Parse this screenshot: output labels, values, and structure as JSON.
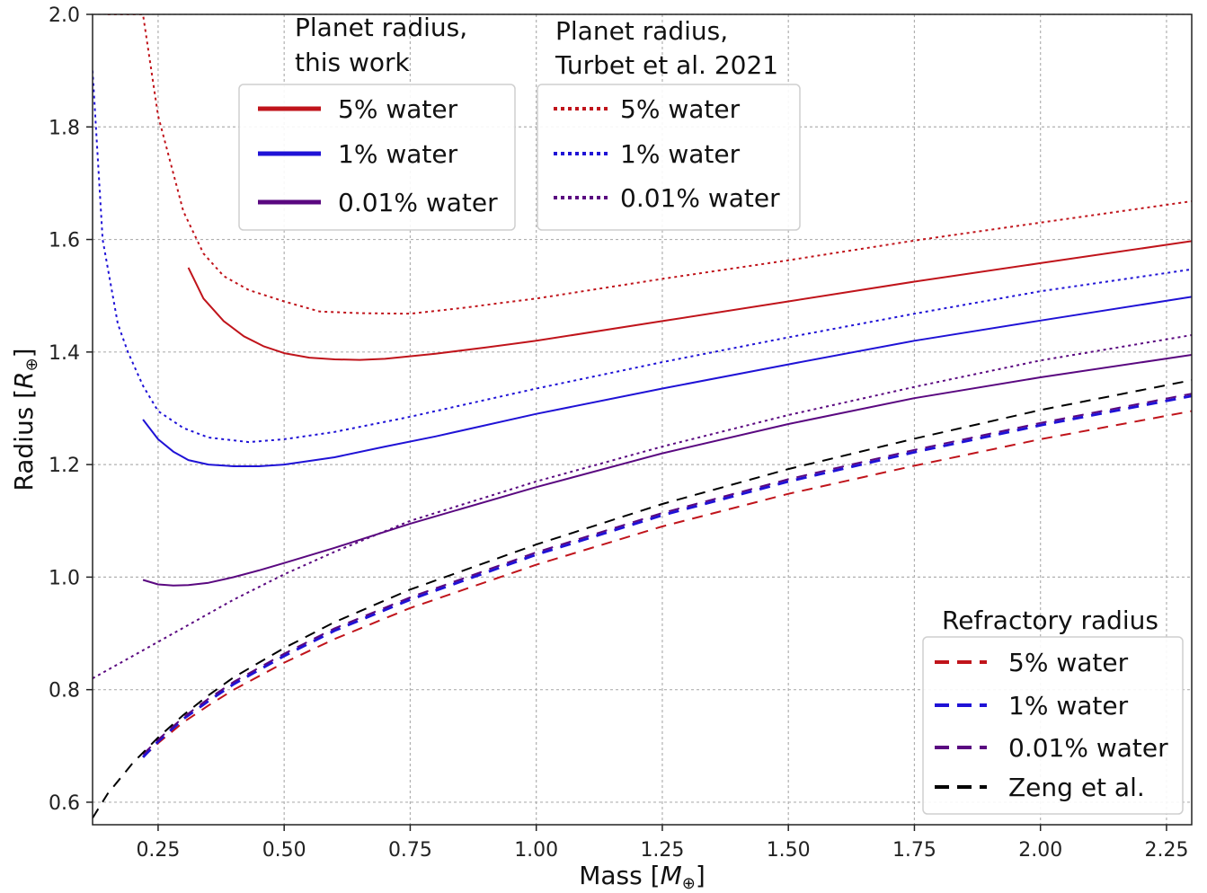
{
  "chart_data": {
    "type": "line",
    "xlabel": "Mass [",
    "xlabel_symbol": "M",
    "xlabel_sub": "⊕",
    "xlabel_close": "]",
    "ylabel": "Radius [",
    "ylabel_symbol": "R",
    "ylabel_sub": "⊕",
    "ylabel_close": "]",
    "xlim": [
      0.12,
      2.3
    ],
    "ylim": [
      0.56,
      2.0
    ],
    "xticks": [
      0.25,
      0.5,
      0.75,
      1.0,
      1.25,
      1.5,
      1.75,
      2.0,
      2.25
    ],
    "xtick_labels": [
      "0.25",
      "0.50",
      "0.75",
      "1.00",
      "1.25",
      "1.50",
      "1.75",
      "2.00",
      "2.25"
    ],
    "yticks": [
      0.6,
      0.8,
      1.0,
      1.2,
      1.4,
      1.6,
      1.8,
      2.0
    ],
    "ytick_labels": [
      "0.6",
      "0.8",
      "1.0",
      "1.2",
      "1.4",
      "1.6",
      "1.8",
      "2.0"
    ],
    "grid": true,
    "colors": {
      "red": "#c0141b",
      "blue": "#1f12d6",
      "purple": "#5a0880",
      "black": "#000000"
    },
    "legends": [
      {
        "title_lines": [
          "Planet radius,",
          "this work"
        ],
        "entries": [
          {
            "label": "5% water",
            "color": "#c0141b",
            "style": "solid"
          },
          {
            "label": "1% water",
            "color": "#1f12d6",
            "style": "solid"
          },
          {
            "label": "0.01% water",
            "color": "#5a0880",
            "style": "solid"
          }
        ]
      },
      {
        "title_lines": [
          "Planet radius,",
          "Turbet et al. 2021"
        ],
        "entries": [
          {
            "label": "5% water",
            "color": "#c0141b",
            "style": "dotted"
          },
          {
            "label": "1% water",
            "color": "#1f12d6",
            "style": "dotted"
          },
          {
            "label": "0.01% water",
            "color": "#5a0880",
            "style": "dotted"
          }
        ]
      },
      {
        "title_lines": [
          "Refractory radius"
        ],
        "entries": [
          {
            "label": "5% water",
            "color": "#c0141b",
            "style": "dashed"
          },
          {
            "label": "1% water",
            "color": "#1f12d6",
            "style": "dashed"
          },
          {
            "label": "0.01% water",
            "color": "#5a0880",
            "style": "dashed"
          },
          {
            "label": "Zeng et al.",
            "color": "#000000",
            "style": "dashed"
          }
        ]
      }
    ],
    "series": [
      {
        "group": "this work",
        "water": "5% water",
        "color": "#c0141b",
        "style": "solid",
        "x": [
          0.31,
          0.34,
          0.38,
          0.42,
          0.46,
          0.5,
          0.55,
          0.6,
          0.65,
          0.7,
          0.8,
          0.9,
          1.0,
          1.25,
          1.5,
          1.75,
          2.0,
          2.3
        ],
        "y": [
          1.55,
          1.495,
          1.455,
          1.428,
          1.41,
          1.398,
          1.39,
          1.387,
          1.386,
          1.388,
          1.397,
          1.408,
          1.42,
          1.455,
          1.49,
          1.525,
          1.558,
          1.597
        ]
      },
      {
        "group": "this work",
        "water": "1% water",
        "color": "#1f12d6",
        "style": "solid",
        "x": [
          0.22,
          0.25,
          0.28,
          0.31,
          0.35,
          0.4,
          0.45,
          0.5,
          0.6,
          0.7,
          0.8,
          1.0,
          1.25,
          1.5,
          1.75,
          2.0,
          2.3
        ],
        "y": [
          1.28,
          1.245,
          1.223,
          1.208,
          1.2,
          1.197,
          1.197,
          1.2,
          1.213,
          1.232,
          1.25,
          1.29,
          1.335,
          1.378,
          1.42,
          1.456,
          1.498
        ]
      },
      {
        "group": "this work",
        "water": "0.01% water",
        "color": "#5a0880",
        "style": "solid",
        "x": [
          0.22,
          0.25,
          0.28,
          0.31,
          0.35,
          0.4,
          0.45,
          0.5,
          0.6,
          0.75,
          1.0,
          1.25,
          1.5,
          1.75,
          2.0,
          2.3
        ],
        "y": [
          0.995,
          0.987,
          0.985,
          0.986,
          0.99,
          1.0,
          1.012,
          1.025,
          1.052,
          1.095,
          1.16,
          1.22,
          1.272,
          1.318,
          1.355,
          1.395
        ]
      },
      {
        "group": "Turbet et al. 2021",
        "water": "5% water",
        "color": "#c0141b",
        "style": "dotted",
        "x": [
          0.15,
          0.19,
          0.22,
          0.25,
          0.3,
          0.34,
          0.38,
          0.43,
          0.5,
          0.57,
          0.65,
          0.75,
          0.85,
          1.0,
          1.25,
          1.5,
          1.75,
          2.0,
          2.3
        ],
        "y": [
          2.0,
          2.0,
          2.0,
          1.82,
          1.65,
          1.575,
          1.535,
          1.51,
          1.49,
          1.472,
          1.469,
          1.468,
          1.478,
          1.495,
          1.53,
          1.563,
          1.598,
          1.63,
          1.668
        ]
      },
      {
        "group": "Turbet et al. 2021",
        "water": "1% water",
        "color": "#1f12d6",
        "style": "dotted",
        "x": [
          0.12,
          0.14,
          0.17,
          0.19,
          0.22,
          0.25,
          0.3,
          0.35,
          0.43,
          0.5,
          0.6,
          0.75,
          1.0,
          1.25,
          1.5,
          1.75,
          2.0,
          2.3
        ],
        "y": [
          1.9,
          1.6,
          1.45,
          1.4,
          1.34,
          1.295,
          1.265,
          1.248,
          1.24,
          1.245,
          1.258,
          1.285,
          1.335,
          1.382,
          1.426,
          1.468,
          1.508,
          1.547
        ]
      },
      {
        "group": "Turbet et al. 2021",
        "water": "0.01% water",
        "color": "#5a0880",
        "style": "dotted",
        "x": [
          0.12,
          0.2,
          0.3,
          0.4,
          0.5,
          0.6,
          0.75,
          1.0,
          1.25,
          1.5,
          1.75,
          2.0,
          2.3
        ],
        "y": [
          0.82,
          0.86,
          0.91,
          0.96,
          1.005,
          1.045,
          1.1,
          1.17,
          1.232,
          1.288,
          1.338,
          1.385,
          1.43
        ]
      },
      {
        "group": "Refractory radius",
        "water": "5% water",
        "color": "#c0141b",
        "style": "dashed",
        "x": [
          0.22,
          0.25,
          0.3,
          0.35,
          0.4,
          0.5,
          0.6,
          0.75,
          1.0,
          1.25,
          1.5,
          1.75,
          2.0,
          2.3
        ],
        "y": [
          0.68,
          0.705,
          0.742,
          0.772,
          0.8,
          0.848,
          0.89,
          0.945,
          1.022,
          1.09,
          1.148,
          1.198,
          1.245,
          1.295
        ]
      },
      {
        "group": "Refractory radius",
        "water": "1% water",
        "color": "#1f12d6",
        "style": "dashed",
        "x": [
          0.22,
          0.25,
          0.3,
          0.35,
          0.4,
          0.5,
          0.6,
          0.75,
          1.0,
          1.25,
          1.5,
          1.75,
          2.0,
          2.3
        ],
        "y": [
          0.68,
          0.708,
          0.748,
          0.78,
          0.81,
          0.86,
          0.905,
          0.96,
          1.04,
          1.11,
          1.17,
          1.222,
          1.27,
          1.322
        ]
      },
      {
        "group": "Refractory radius",
        "water": "0.01% water",
        "color": "#5a0880",
        "style": "dashed",
        "x": [
          0.22,
          0.25,
          0.3,
          0.35,
          0.4,
          0.5,
          0.6,
          0.75,
          1.0,
          1.25,
          1.5,
          1.75,
          2.0,
          2.3
        ],
        "y": [
          0.685,
          0.711,
          0.751,
          0.784,
          0.814,
          0.864,
          0.909,
          0.964,
          1.044,
          1.114,
          1.174,
          1.226,
          1.274,
          1.326
        ]
      },
      {
        "group": "Refractory radius",
        "water": "Zeng et al.",
        "color": "#000000",
        "style": "dashed",
        "x": [
          0.12,
          0.15,
          0.2,
          0.25,
          0.3,
          0.35,
          0.4,
          0.5,
          0.6,
          0.75,
          1.0,
          1.25,
          1.5,
          1.75,
          2.0,
          2.3
        ],
        "y": [
          0.572,
          0.615,
          0.67,
          0.715,
          0.755,
          0.79,
          0.822,
          0.874,
          0.92,
          0.978,
          1.058,
          1.13,
          1.192,
          1.246,
          1.297,
          1.35
        ]
      }
    ]
  }
}
